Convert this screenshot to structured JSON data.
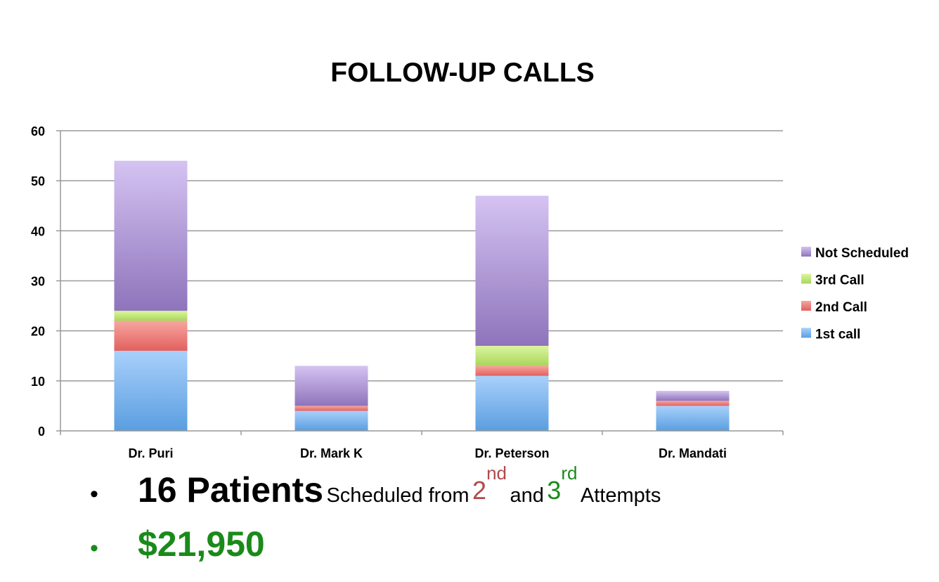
{
  "slide": {
    "title": "FOLLOW-UP CALLS"
  },
  "bullets": {
    "line1": {
      "dot": "•",
      "count": "16 Patients",
      "text_a": "Scheduled from",
      "num2": "2",
      "sup2": "nd",
      "text_and": "and",
      "num3": "3",
      "sup3": "rd",
      "text_b": "Attempts"
    },
    "line2": {
      "dot": "•",
      "amount": "$21,950"
    }
  },
  "colors": {
    "first_call": "#5a9ee0",
    "second_call": "#e86a6a",
    "third_call": "#b8e06a",
    "not_scheduled": "#9c82c4",
    "red_text": "#b04a4a",
    "green_text": "#1a8a1a",
    "grid": "#999999"
  },
  "chart_data": {
    "type": "bar",
    "stacked": true,
    "categories": [
      "Dr. Puri",
      "Dr. Mark K",
      "Dr. Peterson",
      "Dr. Mandati"
    ],
    "series": [
      {
        "name": "1st call",
        "values": [
          16,
          4,
          11,
          5
        ]
      },
      {
        "name": "2nd Call",
        "values": [
          6,
          1,
          2,
          1
        ]
      },
      {
        "name": "3rd Call",
        "values": [
          2,
          0,
          4,
          0
        ]
      },
      {
        "name": "Not Scheduled",
        "values": [
          30,
          8,
          30,
          2
        ]
      }
    ],
    "ylim": [
      0,
      60
    ],
    "yticks": [
      0,
      10,
      20,
      30,
      40,
      50,
      60
    ],
    "grid": true,
    "legend": "right",
    "legend_order": [
      "Not Scheduled",
      "3rd Call",
      "2nd Call",
      "1st call"
    ]
  }
}
